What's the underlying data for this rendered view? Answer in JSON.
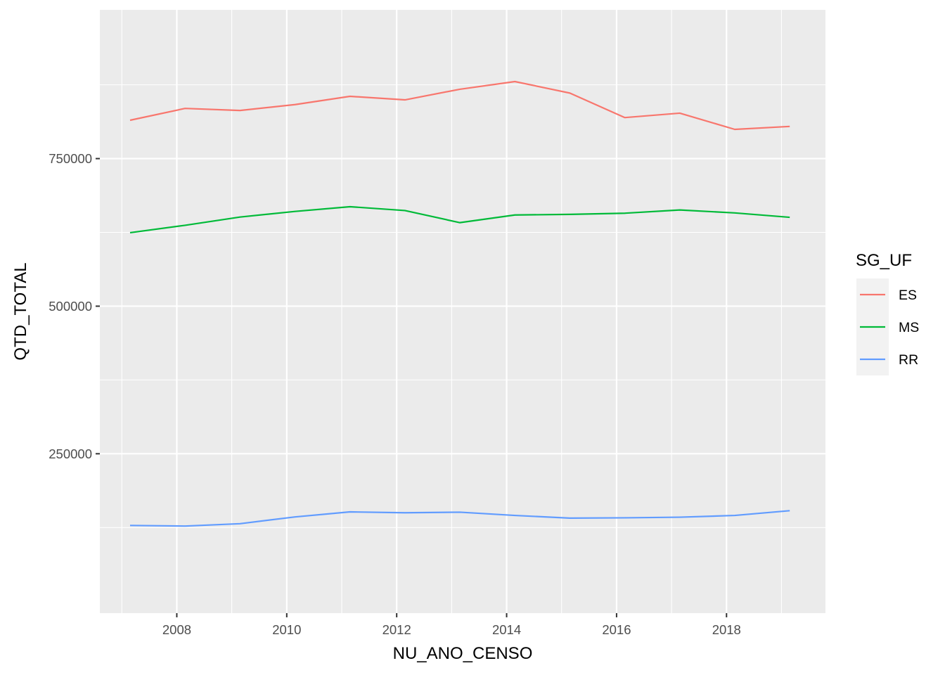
{
  "chart_data": {
    "type": "line",
    "xlabel": "NU_ANO_CENSO",
    "ylabel": "QTD_TOTAL",
    "xlim": [
      2006.6,
      2019.8
    ],
    "ylim": [
      -20000,
      1002000
    ],
    "x_ticks": [
      2008,
      2010,
      2012,
      2014,
      2016,
      2018
    ],
    "x_tick_labels": [
      "2008",
      "2010",
      "2012",
      "2014",
      "2016",
      "2018"
    ],
    "y_ticks": [
      250000,
      500000,
      750000
    ],
    "y_tick_labels": [
      "250000",
      "500000",
      "750000"
    ],
    "grid": true,
    "legend": {
      "title": "SG_UF",
      "position": "right"
    },
    "x": [
      2007.15,
      2008.15,
      2009.15,
      2010.15,
      2011.15,
      2012.15,
      2013.15,
      2014.15,
      2015.15,
      2016.15,
      2017.15,
      2018.15,
      2019.15
    ],
    "series": [
      {
        "name": "ES",
        "color": "#F8766D",
        "values": [
          815000,
          835000,
          831500,
          841500,
          855500,
          849500,
          867500,
          880500,
          861000,
          819500,
          827000,
          799500,
          804500
        ]
      },
      {
        "name": "MS",
        "color": "#00BA38",
        "values": [
          624500,
          637000,
          651000,
          660500,
          668500,
          662000,
          641500,
          654500,
          655500,
          657500,
          663000,
          658000,
          650500
        ]
      },
      {
        "name": "RR",
        "color": "#619CFF",
        "values": [
          128500,
          127500,
          131500,
          143000,
          151500,
          150000,
          151000,
          145500,
          141000,
          141500,
          142500,
          145500,
          153500
        ]
      }
    ]
  }
}
